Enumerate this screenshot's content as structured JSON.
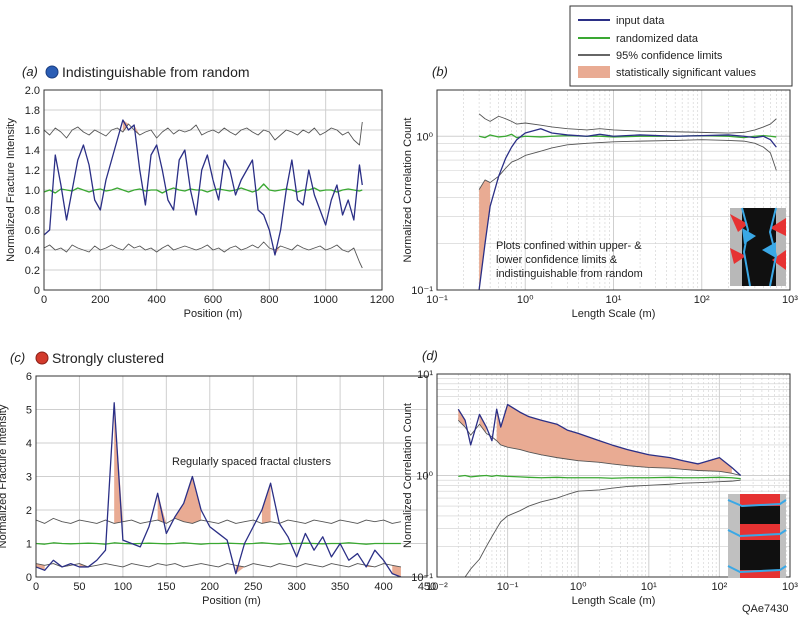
{
  "figure_id": "QAe7430",
  "legend": {
    "placement": "top-right",
    "items": [
      {
        "label": "input data",
        "color": "#2b2f86",
        "kind": "line"
      },
      {
        "label": "randomized data",
        "color": "#3aa832",
        "kind": "line"
      },
      {
        "label": "95% confidence limits",
        "color": "#333333",
        "kind": "line"
      },
      {
        "label": "statistically significant values",
        "color": "#e9ab93",
        "kind": "fill"
      }
    ]
  },
  "chart_data": [
    {
      "panel": "(a)",
      "type": "line",
      "title": "Indistinguishable from random",
      "marker_color": "#2a5db5",
      "xlabel": "Position (m)",
      "ylabel": "Normalized Fracture Intensity",
      "xlim": [
        0,
        1200
      ],
      "ylim": [
        0,
        2
      ],
      "xticks": [
        "0",
        "200",
        "400",
        "600",
        "800",
        "1000",
        "1200"
      ],
      "yticks": [
        "0",
        "0.2",
        "0.4",
        "0.6",
        "0.8",
        "1.0",
        "1.2",
        "1.4",
        "1.6",
        "1.8",
        "2.0"
      ],
      "x": [
        0,
        20,
        40,
        60,
        80,
        100,
        120,
        140,
        160,
        180,
        200,
        220,
        240,
        260,
        280,
        300,
        320,
        340,
        360,
        380,
        400,
        420,
        440,
        460,
        480,
        500,
        520,
        540,
        560,
        580,
        600,
        620,
        640,
        660,
        680,
        700,
        720,
        740,
        760,
        780,
        800,
        820,
        840,
        860,
        880,
        900,
        920,
        940,
        960,
        980,
        1000,
        1020,
        1040,
        1060,
        1080,
        1100,
        1120,
        1130
      ],
      "series": [
        {
          "name": "input data",
          "values": [
            0.55,
            0.6,
            1.35,
            1.05,
            0.7,
            1.0,
            1.3,
            1.45,
            1.25,
            0.9,
            0.8,
            1.1,
            1.3,
            1.5,
            1.7,
            1.6,
            1.65,
            1.2,
            0.85,
            1.35,
            1.45,
            1.2,
            0.9,
            0.8,
            1.3,
            1.4,
            1.0,
            0.75,
            1.2,
            1.35,
            1.1,
            0.9,
            1.3,
            1.2,
            0.95,
            1.1,
            1.2,
            1.3,
            0.8,
            0.75,
            0.6,
            0.35,
            0.6,
            1.0,
            1.3,
            0.9,
            0.85,
            1.2,
            0.95,
            0.8,
            0.65,
            0.9,
            1.05,
            0.75,
            0.9,
            0.7,
            1.25,
            1.05
          ]
        },
        {
          "name": "randomized data",
          "values": [
            0.98,
            1.0,
            0.97,
            1.01,
            1.0,
            0.99,
            1.02,
            1.0,
            0.98,
            1.0,
            1.01,
            0.99,
            1.0,
            1.02,
            1.0,
            0.98,
            1.0,
            1.01,
            0.99,
            1.0,
            1.0,
            0.97,
            1.0,
            1.02,
            1.0,
            0.99,
            1.01,
            1.0,
            1.0,
            0.98,
            1.0,
            1.01,
            1.0,
            0.99,
            1.0,
            1.02,
            1.0,
            0.98,
            1.0,
            1.06,
            1.0,
            0.99,
            1.0,
            1.01,
            1.0,
            0.98,
            1.0,
            1.0,
            1.02,
            0.99,
            1.0,
            1.0,
            0.98,
            1.0,
            1.01,
            1.0,
            0.99,
            1.0
          ]
        },
        {
          "name": "upper confidence limit",
          "values": [
            1.6,
            1.55,
            1.62,
            1.58,
            1.52,
            1.6,
            1.63,
            1.58,
            1.55,
            1.6,
            1.57,
            1.54,
            1.6,
            1.62,
            1.58,
            1.66,
            1.6,
            1.55,
            1.58,
            1.6,
            1.52,
            1.58,
            1.62,
            1.56,
            1.6,
            1.58,
            1.6,
            1.65,
            1.55,
            1.58,
            1.6,
            1.57,
            1.62,
            1.58,
            1.55,
            1.6,
            1.62,
            1.58,
            1.55,
            1.6,
            1.58,
            1.5,
            1.55,
            1.6,
            1.58,
            1.55,
            1.6,
            1.57,
            1.62,
            1.55,
            1.58,
            1.62,
            1.6,
            1.55,
            1.58,
            1.5,
            1.45,
            1.68
          ]
        },
        {
          "name": "lower confidence limit",
          "values": [
            0.42,
            0.45,
            0.4,
            0.42,
            0.38,
            0.45,
            0.42,
            0.4,
            0.38,
            0.44,
            0.4,
            0.42,
            0.45,
            0.42,
            0.4,
            0.46,
            0.42,
            0.44,
            0.4,
            0.42,
            0.38,
            0.42,
            0.45,
            0.4,
            0.42,
            0.44,
            0.42,
            0.4,
            0.42,
            0.45,
            0.4,
            0.42,
            0.38,
            0.42,
            0.44,
            0.4,
            0.42,
            0.45,
            0.42,
            0.48,
            0.42,
            0.4,
            0.44,
            0.42,
            0.4,
            0.45,
            0.42,
            0.4,
            0.42,
            0.44,
            0.4,
            0.42,
            0.45,
            0.4,
            0.38,
            0.42,
            0.28,
            0.22
          ]
        }
      ]
    },
    {
      "panel": "(b)",
      "type": "line",
      "xlabel": "Length Scale (m)",
      "ylabel": "Normalized Correlation Count",
      "xscale": "log",
      "yscale": "log",
      "xlim": [
        0.1,
        1000
      ],
      "ylim": [
        0.1,
        2
      ],
      "xticks": [
        "10⁻¹",
        "10⁰",
        "10¹",
        "10²",
        "10³"
      ],
      "yticks": [
        "10⁻¹",
        "10⁰"
      ],
      "annotation": [
        "Plots confined within upper- &",
        "lower confidence limits &",
        "indistinguishable from random"
      ],
      "inset": "fracture pattern image",
      "x": [
        0.3,
        0.35,
        0.4,
        0.5,
        0.6,
        0.7,
        0.8,
        1,
        1.5,
        2,
        3,
        5,
        7,
        10,
        20,
        50,
        100,
        200,
        300,
        400,
        500,
        600,
        700
      ],
      "series": [
        {
          "name": "input data",
          "values": [
            0.1,
            0.2,
            0.35,
            0.55,
            0.72,
            0.85,
            0.95,
            1.05,
            1.12,
            1.05,
            1.02,
            1.0,
            1.03,
            1.0,
            1.02,
            1.0,
            1.01,
            1.02,
            1.0,
            0.98,
            1.0,
            0.95,
            0.85
          ]
        },
        {
          "name": "randomized data",
          "values": [
            1.0,
            0.98,
            1.02,
            0.99,
            1.0,
            1.03,
            0.98,
            1.0,
            0.99,
            1.0,
            1.01,
            1.0,
            1.0,
            0.99,
            1.0,
            1.0,
            1.01,
            1.0,
            0.98,
            1.0,
            1.01,
            1.0,
            0.99
          ]
        },
        {
          "name": "upper confidence limit",
          "values": [
            1.4,
            1.3,
            1.25,
            1.35,
            1.3,
            1.25,
            1.2,
            1.22,
            1.18,
            1.15,
            1.12,
            1.1,
            1.12,
            1.1,
            1.08,
            1.07,
            1.06,
            1.05,
            1.06,
            1.1,
            1.15,
            1.2,
            1.3
          ]
        },
        {
          "name": "lower confidence limit",
          "values": [
            0.45,
            0.52,
            0.5,
            0.55,
            0.62,
            0.68,
            0.7,
            0.75,
            0.8,
            0.84,
            0.88,
            0.9,
            0.91,
            0.92,
            0.93,
            0.94,
            0.95,
            0.94,
            0.93,
            0.9,
            0.85,
            0.78,
            0.6
          ]
        }
      ]
    },
    {
      "panel": "(c)",
      "type": "line",
      "title": "Strongly clustered",
      "marker_color": "#d23a2c",
      "xlabel": "Position (m)",
      "ylabel": "Normalized Fracture Intensity",
      "xlim": [
        0,
        450
      ],
      "ylim": [
        0,
        6
      ],
      "xticks": [
        "0",
        "50",
        "100",
        "150",
        "200",
        "250",
        "300",
        "350",
        "400",
        "450"
      ],
      "yticks": [
        "0",
        "1",
        "2",
        "3",
        "4",
        "5",
        "6"
      ],
      "annotation": "Regularly spaced fractal clusters",
      "x": [
        0,
        10,
        20,
        30,
        40,
        50,
        60,
        70,
        80,
        90,
        100,
        110,
        120,
        130,
        140,
        150,
        160,
        170,
        180,
        190,
        200,
        210,
        220,
        230,
        240,
        250,
        260,
        270,
        280,
        290,
        300,
        310,
        320,
        330,
        340,
        350,
        360,
        370,
        380,
        390,
        400,
        410,
        420
      ],
      "series": [
        {
          "name": "input data",
          "values": [
            0.3,
            0.2,
            0.5,
            0.3,
            0.4,
            0.3,
            0.3,
            0.5,
            0.8,
            5.2,
            1.1,
            1.0,
            0.9,
            1.5,
            2.5,
            1.3,
            1.8,
            2.2,
            3.0,
            2.0,
            1.5,
            1.3,
            1.1,
            0.1,
            1.0,
            1.5,
            2.0,
            2.8,
            1.6,
            1.2,
            0.6,
            1.3,
            0.8,
            1.2,
            0.6,
            1.0,
            0.5,
            0.7,
            0.3,
            0.8,
            0.5,
            0.1,
            0.0
          ]
        },
        {
          "name": "randomized data",
          "values": [
            1.0,
            0.98,
            1.02,
            1.0,
            0.99,
            1.0,
            1.01,
            1.0,
            0.98,
            1.02,
            1.0,
            0.99,
            1.0,
            1.01,
            1.0,
            0.99,
            1.0,
            1.02,
            1.0,
            0.98,
            1.0,
            1.0,
            1.01,
            1.0,
            0.99,
            1.0,
            1.02,
            1.0,
            0.98,
            1.0,
            1.0,
            1.01,
            1.0,
            0.99,
            1.0,
            1.0,
            1.02,
            1.0,
            0.98,
            1.0,
            1.0,
            1.0,
            1.0
          ]
        },
        {
          "name": "upper confidence limit",
          "values": [
            1.7,
            1.6,
            1.75,
            1.65,
            1.6,
            1.7,
            1.65,
            1.6,
            1.7,
            1.6,
            1.65,
            1.7,
            1.6,
            1.65,
            1.7,
            1.6,
            1.75,
            1.65,
            1.6,
            1.7,
            1.65,
            1.6,
            1.7,
            1.6,
            1.65,
            1.7,
            1.6,
            1.65,
            1.6,
            1.7,
            1.65,
            1.6,
            1.7,
            1.65,
            1.6,
            1.7,
            1.65,
            1.6,
            1.7,
            1.65,
            1.7,
            1.6,
            1.65
          ]
        },
        {
          "name": "lower confidence limit",
          "values": [
            0.4,
            0.35,
            0.4,
            0.3,
            0.35,
            0.4,
            0.3,
            0.35,
            0.4,
            0.35,
            0.3,
            0.4,
            0.35,
            0.3,
            0.4,
            0.35,
            0.4,
            0.3,
            0.35,
            0.4,
            0.35,
            0.3,
            0.4,
            0.35,
            0.3,
            0.4,
            0.35,
            0.3,
            0.4,
            0.35,
            0.3,
            0.4,
            0.35,
            0.3,
            0.4,
            0.35,
            0.3,
            0.4,
            0.35,
            0.3,
            0.4,
            0.35,
            0.3
          ]
        }
      ]
    },
    {
      "panel": "(d)",
      "type": "line",
      "xlabel": "Length Scale (m)",
      "ylabel": "Normalized Correlation Count",
      "xscale": "log",
      "yscale": "log",
      "xlim": [
        0.01,
        1000
      ],
      "ylim": [
        0.1,
        10
      ],
      "xticks": [
        "10⁻²",
        "10⁻¹",
        "10⁰",
        "10¹",
        "10²",
        "10³"
      ],
      "yticks": [
        "10⁻¹",
        "10⁰",
        "10¹"
      ],
      "inset": "fracture pattern image",
      "x": [
        0.02,
        0.025,
        0.03,
        0.04,
        0.05,
        0.06,
        0.07,
        0.08,
        0.1,
        0.15,
        0.2,
        0.3,
        0.5,
        0.7,
        1,
        2,
        3,
        5,
        10,
        20,
        30,
        50,
        100,
        150,
        200
      ],
      "series": [
        {
          "name": "input data",
          "values": [
            4.5,
            3.5,
            2.0,
            4.0,
            3.0,
            2.2,
            4.5,
            3.0,
            5.0,
            4.2,
            3.8,
            3.5,
            3.2,
            2.8,
            2.6,
            2.2,
            2.0,
            1.8,
            1.6,
            1.5,
            1.4,
            1.3,
            1.5,
            1.2,
            1.0
          ]
        },
        {
          "name": "randomized data",
          "values": [
            0.98,
            1.0,
            0.97,
            0.99,
            1.0,
            0.98,
            1.0,
            0.99,
            0.98,
            0.97,
            0.96,
            0.95,
            0.96,
            0.95,
            0.95,
            0.95,
            0.94,
            0.95,
            0.95,
            0.96,
            0.95,
            0.95,
            0.96,
            0.95,
            0.93
          ]
        },
        {
          "name": "upper confidence limit",
          "values": [
            3.5,
            3.0,
            2.5,
            3.2,
            2.6,
            2.4,
            2.2,
            2.0,
            1.9,
            1.8,
            1.7,
            1.6,
            1.5,
            1.45,
            1.4,
            1.35,
            1.3,
            1.25,
            1.2,
            1.18,
            1.15,
            1.12,
            1.1,
            1.05,
            1.0
          ]
        },
        {
          "name": "lower confidence limit",
          "values": [
            0.08,
            0.1,
            0.12,
            0.15,
            0.2,
            0.25,
            0.3,
            0.35,
            0.4,
            0.45,
            0.5,
            0.55,
            0.6,
            0.65,
            0.7,
            0.72,
            0.75,
            0.78,
            0.8,
            0.82,
            0.84,
            0.85,
            0.87,
            0.88,
            0.9
          ]
        }
      ]
    }
  ]
}
